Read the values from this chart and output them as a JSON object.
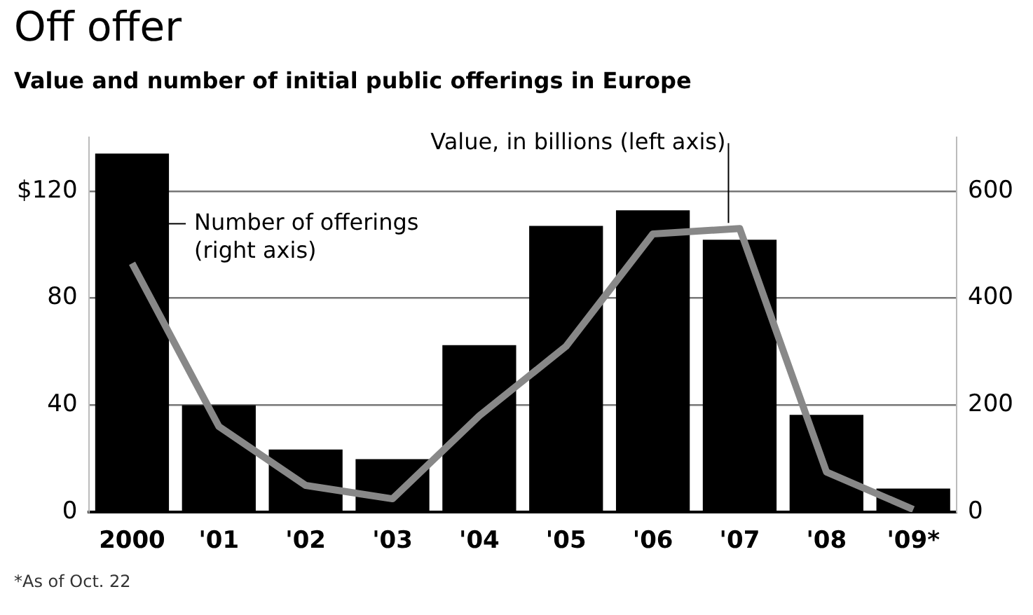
{
  "chart_data": {
    "type": "bar",
    "title": "Off offer",
    "subtitle": "Value and number of initial public offerings in Europe",
    "categories": [
      "2000",
      "'01",
      "'02",
      "'03",
      "'04",
      "'05",
      "'06",
      "'07",
      "'08",
      "'09*"
    ],
    "series": [
      {
        "type": "bar",
        "axis": "y2",
        "color": "#000000",
        "values": [
          670,
          200,
          117,
          99,
          312,
          535,
          564,
          509,
          182,
          44
        ]
      },
      {
        "type": "line",
        "color": "#888888",
        "values": [
          93,
          32,
          10,
          5,
          36,
          62,
          104,
          106,
          15,
          1
        ]
      }
    ],
    "ylim": [
      0,
      140
    ],
    "yticks": [
      0,
      40,
      80,
      {
        "value": 120,
        "label": "$120"
      }
    ],
    "y2lim": [
      0,
      700
    ],
    "y2ticks": [
      0,
      200,
      400,
      600
    ],
    "grid": "y",
    "legend": false,
    "annotations": [
      {
        "text": "Value, in billions (left axis)",
        "x": "'07",
        "y": 106
      },
      "Number of offerings (right axis)",
      "*As of Oct. 22"
    ]
  }
}
